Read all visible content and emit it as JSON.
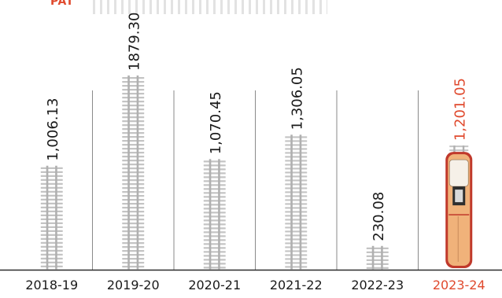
{
  "header": {
    "label": "PAT"
  },
  "colors": {
    "track_rail": "#b0b0b0",
    "track_sleeper": "#c4c4c4",
    "divider": "#8a8a8a",
    "text": "#1a1a1a",
    "highlight": "#e04a2e",
    "train_body": "#f0b27a",
    "train_dark": "#c0392b"
  },
  "chart_data": {
    "type": "bar",
    "title": "",
    "xlabel": "",
    "ylabel": "",
    "categories": [
      "2018-19",
      "2019-20",
      "2020-21",
      "2021-22",
      "2022-23",
      "2023-24"
    ],
    "values": [
      1006.13,
      1879.3,
      1070.45,
      1306.05,
      230.08,
      1201.05
    ],
    "value_labels": [
      "1,006.13",
      "1879.30",
      "1,070.45",
      "1,306.05",
      "230.08",
      "1,201.05"
    ],
    "highlight_index": 5,
    "ylim": [
      0,
      1879.3
    ],
    "grid": false,
    "legend": "none"
  }
}
